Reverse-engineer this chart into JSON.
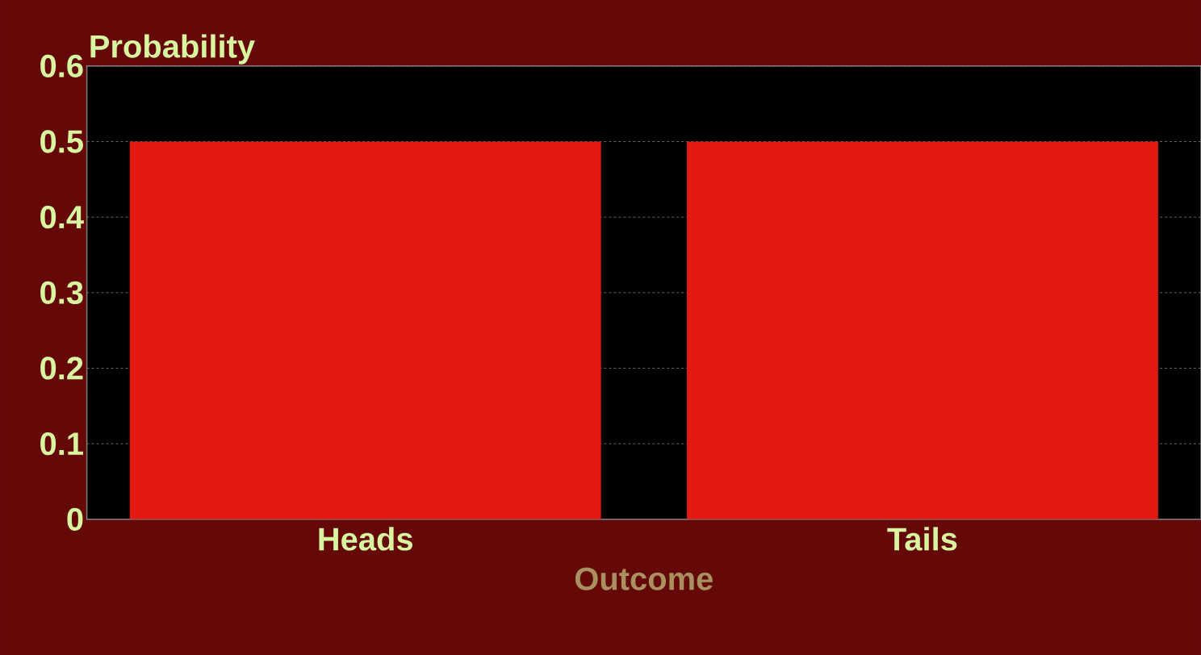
{
  "chart_data": {
    "type": "bar",
    "ylabel": "Probability",
    "xlabel": "Outcome",
    "categories": [
      "Heads",
      "Tails"
    ],
    "values": [
      0.5,
      0.5
    ],
    "color": "#e41911",
    "ylim": [
      0,
      0.6
    ],
    "yticks": [
      0,
      0.1,
      0.2,
      0.3,
      0.4,
      0.5,
      0.6
    ],
    "grid": "y"
  }
}
